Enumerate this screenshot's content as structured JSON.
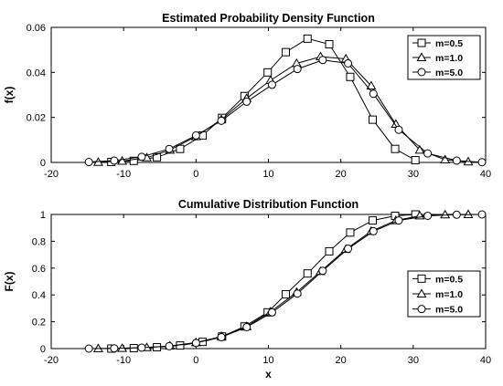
{
  "chart_data": [
    {
      "type": "line",
      "title": "Estimated Probability Density Function",
      "xlabel": "",
      "ylabel": "f(x)",
      "xlim": [
        -20,
        40
      ],
      "ylim": [
        0,
        0.06
      ],
      "xticks": [
        "-20",
        "-10",
        "0",
        "10",
        "20",
        "30",
        "40"
      ],
      "yticks": [
        "0",
        "0.02",
        "0.04",
        "0.06"
      ],
      "grid": false,
      "legend_position": "top-right",
      "series": [
        {
          "name": "m=0.5",
          "marker": "square",
          "x": [
            -11.7,
            -8.6,
            -5.4,
            -2.2,
            0.9,
            3.6,
            6.7,
            9.9,
            12.4,
            15.4,
            18.4,
            21.3,
            24.4,
            27.5,
            30.3
          ],
          "y": [
            0.0002,
            0.0007,
            0.0023,
            0.006,
            0.012,
            0.0198,
            0.0295,
            0.04,
            0.049,
            0.055,
            0.0525,
            0.038,
            0.019,
            0.006,
            0.001
          ]
        },
        {
          "name": "m=1.0",
          "marker": "triangle",
          "x": [
            -13.5,
            -10.2,
            -6.8,
            -3.6,
            0,
            3.5,
            7.0,
            10.3,
            13.9,
            17.2,
            20.7,
            24.2,
            27.6,
            30.9,
            34.4,
            37.6
          ],
          "y": [
            0.0001,
            0.0006,
            0.0021,
            0.0055,
            0.0115,
            0.019,
            0.0285,
            0.0365,
            0.044,
            0.047,
            0.046,
            0.034,
            0.017,
            0.0055,
            0.0012,
            0.0003
          ]
        },
        {
          "name": "m=5.0",
          "marker": "circle",
          "x": [
            -14.8,
            -11.3,
            -7.5,
            -3.7,
            0,
            3.5,
            7.0,
            10.5,
            14.0,
            17.5,
            21.0,
            24.5,
            28.0,
            32.0,
            36.0,
            39.5
          ],
          "y": [
            0.0002,
            0.0008,
            0.0025,
            0.006,
            0.012,
            0.0185,
            0.027,
            0.0345,
            0.0415,
            0.0455,
            0.044,
            0.0305,
            0.0145,
            0.004,
            0.0008,
            0.0001
          ]
        }
      ]
    },
    {
      "type": "line",
      "title": "Cumulative Distribution Function",
      "xlabel": "x",
      "ylabel": "F(x)",
      "xlim": [
        -20,
        40
      ],
      "ylim": [
        0,
        1
      ],
      "xticks": [
        "-20",
        "-10",
        "0",
        "10",
        "20",
        "30",
        "40"
      ],
      "yticks": [
        "0",
        "0.2",
        "0.4",
        "0.6",
        "0.8",
        "1"
      ],
      "grid": false,
      "legend_position": "bottom-right",
      "series": [
        {
          "name": "m=0.5",
          "marker": "square",
          "x": [
            -11.7,
            -8.6,
            -5.4,
            -2.2,
            0.9,
            3.6,
            6.7,
            9.9,
            12.4,
            15.4,
            18.4,
            21.3,
            24.4,
            27.5,
            30.3
          ],
          "y": [
            0.0,
            0.003,
            0.01,
            0.023,
            0.05,
            0.09,
            0.165,
            0.27,
            0.405,
            0.56,
            0.725,
            0.865,
            0.955,
            0.99,
            1.0
          ]
        },
        {
          "name": "m=1.0",
          "marker": "triangle",
          "x": [
            -13.5,
            -10.2,
            -6.8,
            -3.6,
            0,
            3.5,
            7.0,
            10.3,
            13.9,
            17.2,
            20.7,
            24.2,
            27.6,
            30.9,
            34.4,
            37.6
          ],
          "y": [
            0.0,
            0.002,
            0.008,
            0.02,
            0.045,
            0.09,
            0.165,
            0.275,
            0.42,
            0.575,
            0.74,
            0.875,
            0.955,
            0.99,
            0.998,
            1.0
          ]
        },
        {
          "name": "m=5.0",
          "marker": "circle",
          "x": [
            -14.8,
            -11.3,
            -7.5,
            -3.7,
            0,
            3.5,
            7.0,
            10.5,
            14.0,
            17.5,
            21.0,
            24.5,
            28.0,
            32.0,
            36.0,
            39.5
          ],
          "y": [
            0.0,
            0.002,
            0.007,
            0.018,
            0.042,
            0.085,
            0.16,
            0.27,
            0.41,
            0.58,
            0.745,
            0.875,
            0.955,
            0.99,
            0.998,
            1.0
          ]
        }
      ]
    }
  ]
}
